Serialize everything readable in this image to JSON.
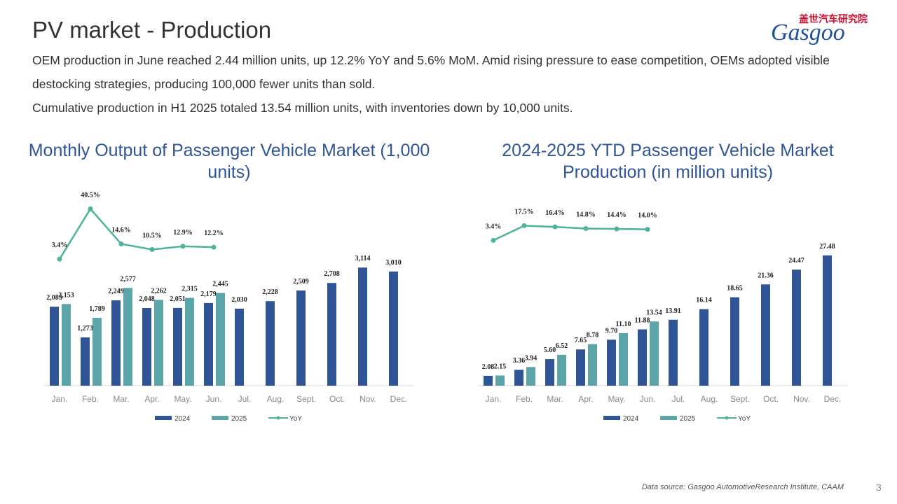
{
  "title": "PV market - Production",
  "paragraphs": [
    "OEM production in June reached 2.44 million units, up 12.2% YoY and 5.6% MoM. Amid rising pressure to ease competition, OEMs adopted visible destocking strategies, producing 100,000 fewer units than sold.",
    "Cumulative production in H1 2025 totaled 13.54 million units, with inventories down by 10,000 units."
  ],
  "logo": {
    "cn": "盖世汽车研究院",
    "en": "Gasgoo"
  },
  "source": "Data source: Gasgoo AutomotiveResearch Institute, CAAM",
  "page": "3",
  "chart_data": [
    {
      "type": "bar",
      "title": "Monthly Output of Passenger Vehicle Market (1,000 units)",
      "categories": [
        "Jan.",
        "Feb.",
        "Mar.",
        "Apr.",
        "May.",
        "Jun.",
        "Jul.",
        "Aug.",
        "Sept.",
        "Oct.",
        "Nov.",
        "Dec."
      ],
      "ylim": [
        0,
        5000
      ],
      "y2lim": [
        -90,
        50
      ],
      "series": [
        {
          "name": "2024",
          "color": "#2f5597",
          "values": [
            2083,
            1273,
            2249,
            2048,
            2051,
            2179,
            2030,
            2228,
            2509,
            2708,
            3114,
            3010
          ],
          "value_labels": [
            "2,083",
            "1,273",
            "2,249",
            "2,048",
            "2,051",
            "2,179",
            "2,030",
            "2,228",
            "2,509",
            "2,708",
            "3,114",
            "3,010"
          ]
        },
        {
          "name": "2025",
          "color": "#5ba5a8",
          "values": [
            2153,
            1789,
            2577,
            2262,
            2315,
            2445,
            null,
            null,
            null,
            null,
            null,
            null
          ],
          "value_labels": [
            "2,153",
            "1,789",
            "2,577",
            "2,262",
            "2,315",
            "2,445",
            null,
            null,
            null,
            null,
            null,
            null
          ]
        },
        {
          "name": "YoY",
          "type": "line",
          "axis": "y2",
          "color": "#4db39b",
          "values": [
            3.4,
            40.5,
            14.6,
            10.5,
            12.9,
            12.2,
            null,
            null,
            null,
            null,
            null,
            null
          ],
          "value_labels": [
            "3.4%",
            "40.5%",
            "14.6%",
            "10.5%",
            "12.9%",
            "12.2%",
            null,
            null,
            null,
            null,
            null,
            null
          ]
        }
      ]
    },
    {
      "type": "bar",
      "title": "2024-2025  YTD Passenger Vehicle Market Production (in million units)",
      "categories": [
        "Jan.",
        "Feb.",
        "Mar.",
        "Apr.",
        "May.",
        "Jun.",
        "Jul.",
        "Aug.",
        "Sept.",
        "Oct.",
        "Nov.",
        "Dec."
      ],
      "ylim": [
        0,
        40
      ],
      "y2lim": [
        -136,
        46
      ],
      "series": [
        {
          "name": "2024",
          "color": "#2f5597",
          "values": [
            2.08,
            3.36,
            5.6,
            7.65,
            9.7,
            11.88,
            13.91,
            16.14,
            18.65,
            21.36,
            24.47,
            27.48
          ],
          "value_labels": [
            "2.08",
            "3.36",
            "5.60",
            "7.65",
            "9.70",
            "11.88",
            "13.91",
            "16.14",
            "18.65",
            "21.36",
            "24.47",
            "27.48"
          ]
        },
        {
          "name": "2025",
          "color": "#5ba5a8",
          "values": [
            2.15,
            3.94,
            6.52,
            8.78,
            11.1,
            13.54,
            null,
            null,
            null,
            null,
            null,
            null
          ],
          "value_labels": [
            "2.15",
            "3.94",
            "6.52",
            "8.78",
            "11.10",
            "13.54",
            null,
            null,
            null,
            null,
            null,
            null
          ]
        },
        {
          "name": "YoY",
          "type": "line",
          "axis": "y2",
          "color": "#4db39b",
          "values": [
            3.4,
            17.5,
            16.4,
            14.8,
            14.4,
            14.0,
            null,
            null,
            null,
            null,
            null,
            null
          ],
          "value_labels": [
            "3.4%",
            "17.5%",
            "16.4%",
            "14.8%",
            "14.4%",
            "14.0%",
            null,
            null,
            null,
            null,
            null,
            null
          ]
        }
      ]
    }
  ]
}
